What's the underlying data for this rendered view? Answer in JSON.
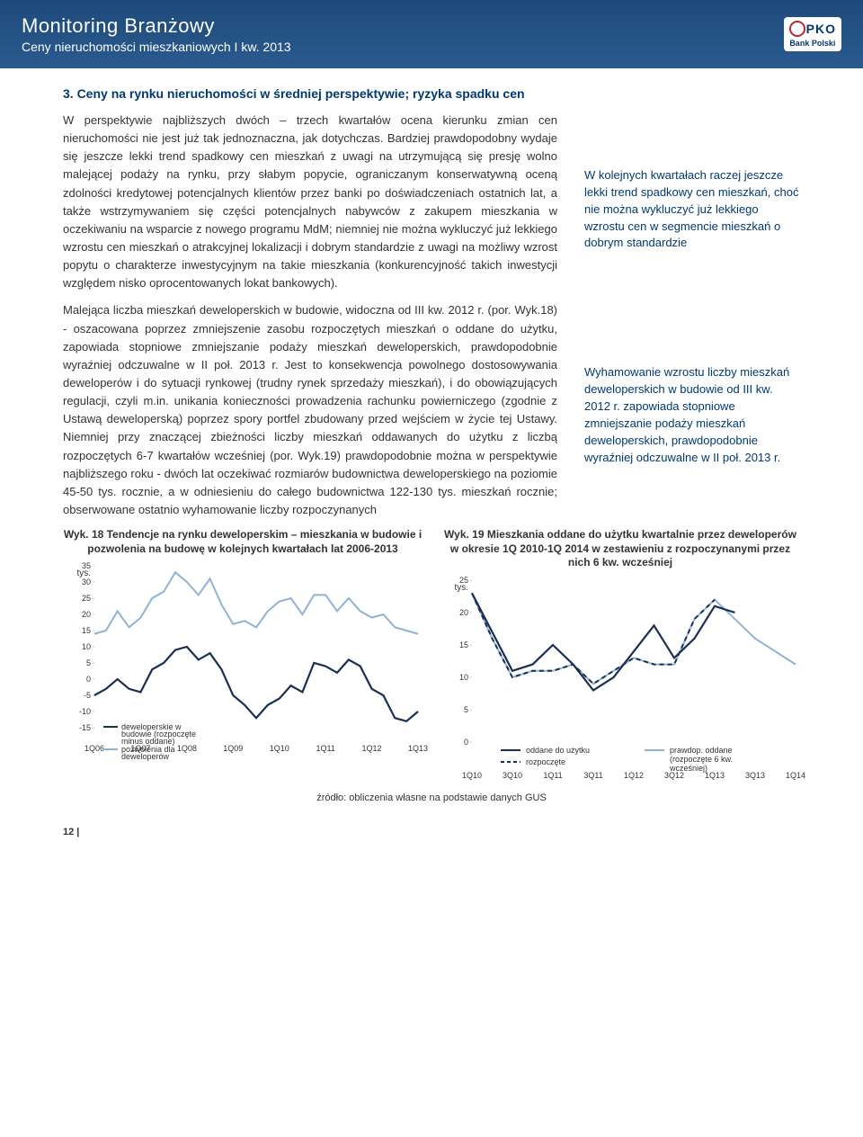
{
  "header": {
    "title": "Monitoring Branżowy",
    "subtitle": "Ceny nieruchomości mieszkaniowych I kw. 2013",
    "brand": "Bank Polski"
  },
  "section_title": "3. Ceny na rynku nieruchomości w średniej perspektywie; ryzyka spadku cen",
  "para1": "W perspektywie najbliższych dwóch – trzech kwartałów ocena kierunku zmian cen nieruchomości nie jest już tak jednoznaczna, jak dotychczas. Bardziej prawdopodobny wydaje się jeszcze lekki trend spadkowy cen mieszkań z uwagi na utrzymującą się presję wolno malejącej podaży na rynku, przy słabym popycie, ograniczanym konserwatywną oceną zdolności kredytowej potencjalnych klientów przez banki po doświadczeniach ostatnich lat, a także wstrzymywaniem się części potencjalnych nabywców z zakupem mieszkania w oczekiwaniu na wsparcie z nowego programu MdM; niemniej nie można wykluczyć już lekkiego wzrostu cen mieszkań o atrakcyjnej lokalizacji i dobrym standardzie z uwagi na możliwy wzrost popytu o charakterze inwestycyjnym na takie mieszkania (konkurencyjność takich inwestycji względem nisko oprocentowanych lokat bankowych).",
  "side1": "W kolejnych kwartałach raczej jeszcze lekki trend spadkowy cen mieszkań, choć nie można wykluczyć już lekkiego wzrostu cen w segmencie mieszkań o dobrym standardzie",
  "para2": "Malejąca liczba mieszkań deweloperskich w budowie, widoczna od III kw. 2012 r. (por. Wyk.18) - oszacowana poprzez zmniejszenie zasobu rozpoczętych mieszkań o oddane do użytku, zapowiada stopniowe zmniejszanie podaży mieszkań deweloperskich, prawdopodobnie wyraźniej odczuwalne w II poł. 2013 r. Jest to konsekwencja powolnego dostosowywania deweloperów i do sytuacji rynkowej (trudny rynek sprzedaży mieszkań), i do obowiązujących regulacji, czyli m.in. unikania konieczności prowadzenia rachunku powierniczego (zgodnie z Ustawą deweloperską) poprzez spory portfel zbudowany przed wejściem w życie tej Ustawy. Niemniej przy znaczącej zbieżności liczby mieszkań oddawanych do użytku z liczbą rozpoczętych 6-7 kwartałów wcześniej (por. Wyk.19) prawdopodobnie można w perspektywie najbliższego roku - dwóch lat oczekiwać rozmiarów budownictwa deweloperskiego na poziomie 45-50 tys. rocznie, a w odniesieniu do całego budownictwa 122-130 tys. mieszkań rocznie; obserwowane ostatnio wyhamowanie liczby rozpoczynanych",
  "side2": "Wyhamowanie wzrostu liczby mieszkań deweloperskich w budowie od III kw. 2012 r. zapowiada stopniowe zmniejszanie podaży mieszkań deweloperskich, prawdopodobnie wyraźniej odczuwalne w II poł. 2013 r.",
  "chart18": {
    "title": "Wyk. 18 Tendencje na rynku deweloperskim – mieszkania w budowie i pozwolenia na budowę w kolejnych kwartałach lat 2006-2013",
    "ylabel": "tys.",
    "ylim": [
      -15,
      35
    ],
    "yticks": [
      -15,
      -10,
      -5,
      0,
      5,
      10,
      15,
      20,
      25,
      30,
      35
    ],
    "xlabels": [
      "1Q06",
      "1Q07",
      "1Q08",
      "1Q09",
      "1Q10",
      "1Q11",
      "1Q12",
      "1Q13"
    ],
    "series_dark": {
      "name": "deweloperskie w budowie (rozpoczęte minus oddane)",
      "color": "#1a2f52",
      "stroke_width": 2.2,
      "values": [
        -5,
        -3,
        0,
        -3,
        -4,
        3,
        5,
        9,
        10,
        6,
        8,
        3,
        -5,
        -8,
        -12,
        -8,
        -6,
        -2,
        -4,
        5,
        4,
        2,
        6,
        4,
        -3,
        -5,
        -12,
        -13,
        -10
      ]
    },
    "series_light": {
      "name": "pozwolenia dla deweloperów",
      "color": "#8fb3d4",
      "stroke_width": 2,
      "values": [
        14,
        15,
        21,
        16,
        19,
        25,
        27,
        33,
        30,
        26,
        31,
        23,
        17,
        18,
        16,
        21,
        24,
        25,
        20,
        26,
        26,
        21,
        25,
        21,
        19,
        20,
        16,
        15,
        14
      ]
    }
  },
  "chart19": {
    "title": "Wyk. 19 Mieszkania oddane do użytku kwartalnie przez deweloperów w okresie 1Q 2010-1Q 2014 w zestawieniu z rozpoczynanymi przez nich 6 kw. wcześniej",
    "ylabel": "tys.",
    "ylim": [
      0,
      25
    ],
    "yticks": [
      0,
      5,
      10,
      15,
      20,
      25
    ],
    "xlabels": [
      "1Q10",
      "3Q10",
      "1Q11",
      "3Q11",
      "1Q12",
      "3Q12",
      "1Q13",
      "3Q13",
      "1Q14"
    ],
    "series_oddane": {
      "name": "oddane do użytku",
      "color": "#1a2f52",
      "stroke_width": 2.2,
      "dash": "none",
      "values": [
        23,
        17,
        11,
        12,
        15,
        12,
        8,
        10,
        14,
        18,
        13,
        16,
        21,
        20
      ]
    },
    "series_rozpoczete": {
      "name": "rozpoczęte",
      "color": "#1a2f52",
      "stroke_width": 2,
      "dash": "5,4",
      "values": [
        23,
        16,
        10,
        11,
        11,
        12,
        9,
        11,
        13,
        12,
        12,
        19,
        22,
        null
      ]
    },
    "series_prawdop": {
      "name": "prawdop. oddane (rozpoczęte 6 kw. wcześniej)",
      "color": "#8fb3d4",
      "stroke_width": 2,
      "dash": "none",
      "values": [
        23,
        16,
        10,
        11,
        11,
        12,
        9,
        11,
        13,
        12,
        12,
        19,
        22,
        19,
        16,
        14,
        12
      ]
    }
  },
  "source": "źródło: obliczenia własne na podstawie danych GUS",
  "page_num": "12 |"
}
